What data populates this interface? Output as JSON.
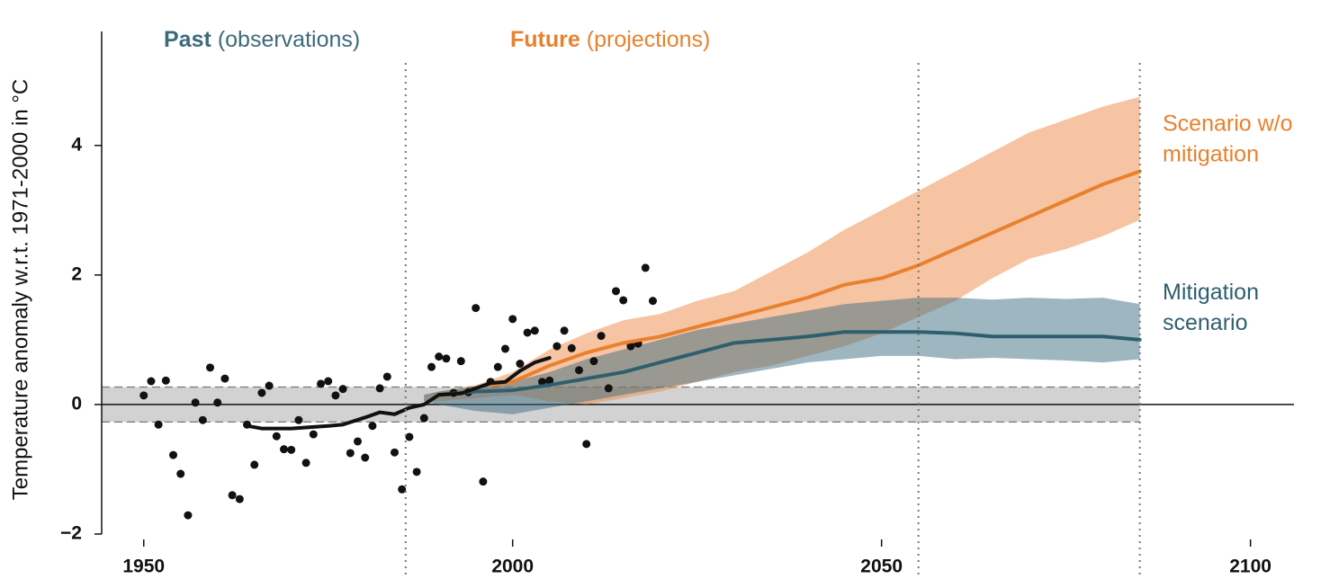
{
  "chart_data": {
    "type": "line",
    "title_parts": [
      {
        "bold": "Past",
        "rest": "(observations)",
        "color": "#3d6a7a"
      },
      {
        "bold": "Future",
        "rest": "(projections)",
        "color": "#e8812e"
      }
    ],
    "ylabel": "Temperature anomaly w.r.t. 1971-2000 in °C",
    "xlim": [
      1944.3,
      2105.9
    ],
    "ylim": [
      -2,
      5.76
    ],
    "xticks": [
      1950,
      2000,
      2050,
      2100
    ],
    "yticks": [
      {
        "value": -2,
        "label": "−2"
      },
      0,
      2,
      4
    ],
    "reference_band": [
      -0.27,
      0.27
    ],
    "zero_line": 0,
    "vlines": [
      1985.5,
      2055,
      2085
    ],
    "series": [
      {
        "type": "band",
        "color": "#ee8a45",
        "x": [
          1988,
          1990,
          1995,
          2000,
          2005,
          2010,
          2015,
          2020,
          2025,
          2030,
          2035,
          2040,
          2045,
          2050,
          2055,
          2060,
          2065,
          2070,
          2075,
          2080,
          2085
        ],
        "upper": [
          0.15,
          0.2,
          0.3,
          0.5,
          0.85,
          1.1,
          1.3,
          1.4,
          1.6,
          1.75,
          2.05,
          2.35,
          2.7,
          3.0,
          3.3,
          3.6,
          3.9,
          4.2,
          4.4,
          4.6,
          4.75
        ],
        "lower": [
          0.05,
          0.05,
          0.1,
          0.15,
          0.05,
          0.0,
          0.1,
          0.2,
          0.35,
          0.5,
          0.6,
          0.75,
          0.9,
          1.1,
          1.35,
          1.6,
          1.95,
          2.25,
          2.4,
          2.6,
          2.85
        ]
      },
      {
        "type": "band",
        "color": "#3d6e80",
        "x": [
          1988,
          1990,
          1995,
          2000,
          2005,
          2010,
          2015,
          2020,
          2025,
          2030,
          2035,
          2040,
          2045,
          2050,
          2055,
          2060,
          2065,
          2070,
          2075,
          2080,
          2085
        ],
        "upper": [
          0.15,
          0.2,
          0.28,
          0.35,
          0.5,
          0.7,
          0.85,
          1.0,
          1.15,
          1.25,
          1.35,
          1.45,
          1.55,
          1.6,
          1.65,
          1.65,
          1.62,
          1.65,
          1.63,
          1.65,
          1.55
        ],
        "lower": [
          0.05,
          0.0,
          -0.1,
          -0.15,
          -0.05,
          0.05,
          0.15,
          0.25,
          0.35,
          0.45,
          0.55,
          0.65,
          0.7,
          0.75,
          0.75,
          0.7,
          0.72,
          0.7,
          0.68,
          0.65,
          0.7
        ]
      },
      {
        "type": "line",
        "color": "#2f5f6f",
        "label_lines": [
          "Mitigation",
          "scenario"
        ],
        "x": [
          1990,
          1995,
          2000,
          2005,
          2010,
          2015,
          2020,
          2025,
          2030,
          2035,
          2040,
          2045,
          2050,
          2055,
          2060,
          2065,
          2070,
          2075,
          2080,
          2085
        ],
        "values": [
          0.15,
          0.2,
          0.22,
          0.3,
          0.4,
          0.5,
          0.65,
          0.8,
          0.95,
          1.0,
          1.05,
          1.12,
          1.12,
          1.12,
          1.1,
          1.05,
          1.05,
          1.05,
          1.05,
          1.0
        ]
      },
      {
        "type": "line",
        "color": "#e8812e",
        "label_lines": [
          "Scenario w/o",
          "mitigation"
        ],
        "x": [
          1997,
          2000,
          2005,
          2010,
          2015,
          2020,
          2025,
          2030,
          2035,
          2040,
          2045,
          2050,
          2055,
          2060,
          2065,
          2070,
          2075,
          2080,
          2085
        ],
        "values": [
          0.3,
          0.35,
          0.6,
          0.8,
          0.95,
          1.05,
          1.2,
          1.35,
          1.5,
          1.65,
          1.85,
          1.95,
          2.15,
          2.4,
          2.65,
          2.9,
          3.15,
          3.4,
          3.6
        ]
      },
      {
        "type": "scatter",
        "color": "#111111",
        "x": [
          1950,
          1951,
          1952,
          1953,
          1954,
          1955,
          1956,
          1957,
          1958,
          1959,
          1960,
          1961,
          1962,
          1963,
          1964,
          1965,
          1966,
          1967,
          1968,
          1969,
          1970,
          1971,
          1972,
          1973,
          1974,
          1975,
          1976,
          1977,
          1978,
          1979,
          1980,
          1981,
          1982,
          1983,
          1984,
          1985,
          1986,
          1987,
          1988,
          1989,
          1990,
          1991,
          1992,
          1993,
          1994,
          1995,
          1996,
          1997,
          1998,
          1999,
          2000,
          2001,
          2002,
          2003,
          2004,
          2005,
          2006,
          2007,
          2008,
          2009,
          2010,
          2011,
          2012,
          2013,
          2014,
          2015,
          2016,
          2017,
          2018,
          2019
        ],
        "values": [
          0.14,
          0.36,
          -0.31,
          0.37,
          -0.78,
          -1.07,
          -1.71,
          0.03,
          -0.24,
          0.57,
          0.03,
          0.4,
          -1.4,
          -1.46,
          -0.31,
          -0.93,
          0.18,
          0.29,
          -0.49,
          -0.69,
          -0.7,
          -0.24,
          -0.9,
          -0.46,
          0.32,
          0.36,
          0.14,
          0.24,
          -0.75,
          -0.57,
          -0.82,
          -0.33,
          0.25,
          0.43,
          -0.74,
          -1.31,
          -0.5,
          -1.04,
          -0.21,
          0.58,
          0.74,
          0.71,
          0.18,
          0.67,
          0.19,
          1.49,
          -1.19,
          0.35,
          0.58,
          0.86,
          1.32,
          0.63,
          1.11,
          1.14,
          0.35,
          0.37,
          0.9,
          1.14,
          0.87,
          0.53,
          -0.61,
          0.67,
          1.06,
          0.25,
          1.75,
          1.61,
          0.9,
          0.94,
          2.11,
          1.6
        ]
      },
      {
        "type": "line",
        "color": "#111111",
        "x": [
          1964,
          1966,
          1970,
          1975,
          1977,
          1980,
          1982,
          1984,
          1986,
          1988,
          1990,
          1993,
          1995,
          1997,
          1999,
          2001,
          2003,
          2005
        ],
        "values": [
          -0.33,
          -0.37,
          -0.37,
          -0.33,
          -0.31,
          -0.2,
          -0.12,
          -0.15,
          -0.05,
          0.0,
          0.15,
          0.17,
          0.25,
          0.33,
          0.35,
          0.52,
          0.65,
          0.72
        ]
      }
    ]
  }
}
